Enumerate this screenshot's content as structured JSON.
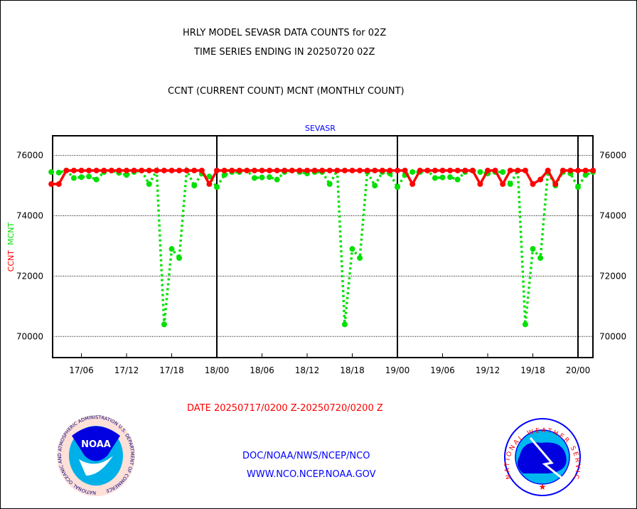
{
  "chart_data": {
    "type": "line",
    "title_lines": [
      "HRLY MODEL SEVASR DATA COUNTS for 02Z",
      "TIME SERIES ENDING IN 20250720 02Z"
    ],
    "subtitle": "CCNT (CURRENT COUNT) MCNT (MONTHLY COUNT)",
    "plot_label": "SEVASR",
    "ylabel_parts": [
      {
        "text": "CCNT",
        "color": "#ff0000"
      },
      {
        "text": "MCNT",
        "color": "#00e000"
      }
    ],
    "xlabel": "DATE 20250717/0200 Z-20250720/0200 Z",
    "ylim": [
      69300,
      76650
    ],
    "yticks": [
      70000,
      72000,
      74000,
      76000
    ],
    "ytick_labels": [
      "70000",
      "72000",
      "74000",
      "76000"
    ],
    "x_unit": "hours since 17/02Z",
    "xlim": [
      0,
      72
    ],
    "xticks": [
      4,
      10,
      16,
      22,
      28,
      34,
      40,
      46,
      52,
      58,
      64,
      70
    ],
    "xtick_labels": [
      "17/06",
      "17/12",
      "17/18",
      "18/00",
      "18/06",
      "18/12",
      "18/18",
      "19/00",
      "19/06",
      "19/12",
      "19/18",
      "20/00"
    ],
    "day_boundaries": [
      22,
      46,
      70
    ],
    "grid": true,
    "series": [
      {
        "name": "MCNT",
        "color": "#00e000",
        "style": "dotted",
        "values": [
          75450,
          75430,
          75500,
          75250,
          75280,
          75300,
          75200,
          75450,
          75500,
          75420,
          75350,
          75450,
          75500,
          75050,
          75500,
          70400,
          72900,
          72600,
          75500,
          75000,
          75400,
          75300,
          74950,
          75350,
          75450,
          75450,
          75500,
          75250,
          75270,
          75280,
          75200,
          75450,
          75500,
          75450,
          75400,
          75450,
          75450,
          75050,
          75500,
          70400,
          72900,
          72600,
          75450,
          75000,
          75450,
          75400,
          74950,
          75350,
          75450,
          75450,
          75500,
          75250,
          75270,
          75280,
          75200,
          75450,
          75500,
          75450,
          75400,
          75450,
          75450,
          75050,
          75500,
          70400,
          72900,
          72600,
          75450,
          75000,
          75450,
          75400,
          74950,
          75350,
          75450
        ]
      },
      {
        "name": "CCNT",
        "color": "#ff0000",
        "style": "solid",
        "values": [
          75050,
          75050,
          75500,
          75500,
          75500,
          75500,
          75500,
          75500,
          75500,
          75500,
          75500,
          75500,
          75500,
          75500,
          75500,
          75500,
          75500,
          75500,
          75500,
          75500,
          75500,
          75050,
          75500,
          75500,
          75500,
          75500,
          75500,
          75500,
          75500,
          75500,
          75500,
          75500,
          75500,
          75500,
          75500,
          75500,
          75500,
          75500,
          75500,
          75500,
          75500,
          75500,
          75500,
          75500,
          75500,
          75500,
          75500,
          75500,
          75050,
          75500,
          75500,
          75500,
          75500,
          75500,
          75500,
          75500,
          75500,
          75050,
          75500,
          75500,
          75050,
          75500,
          75500,
          75500,
          75050,
          75200,
          75500,
          75050,
          75500,
          75500,
          75500,
          75500,
          75500
        ]
      }
    ]
  },
  "footer": {
    "line1": "DOC/NOAA/NWS/NCEP/NCO",
    "line2": "WWW.NCO.NCEP.NOAA.GOV",
    "noaa_logo_text": "NOAA",
    "noaa_ring_text": "NATIONAL OCEANIC AND ATMOSPHERIC ADMINISTRATION U.S. DEPARTMENT OF COMMERCE",
    "nws_ring_text": "NATIONAL WEATHER SERVICE"
  }
}
